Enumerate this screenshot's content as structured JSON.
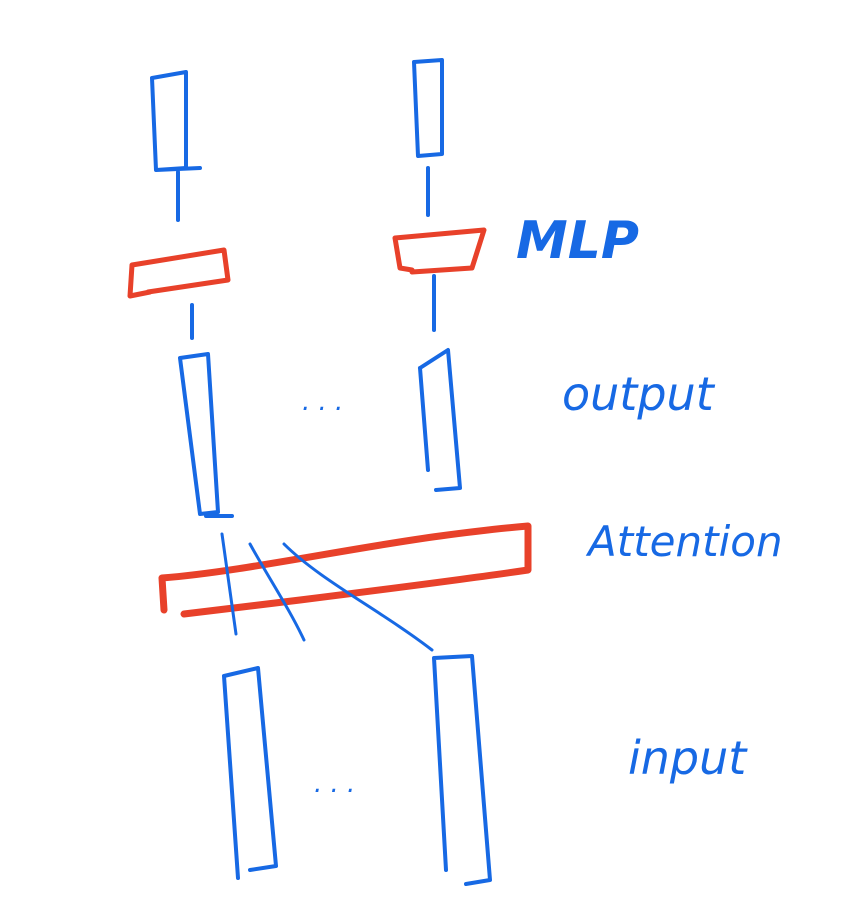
{
  "colors": {
    "ink_blue": "#1769e4",
    "ink_red": "#e8412a",
    "background": "#ffffff"
  },
  "labels": {
    "mlp": "MLP",
    "output": "output",
    "attention": "Attention",
    "input": "input",
    "output_ellipsis": ". . .",
    "input_ellipsis": ". . ."
  }
}
